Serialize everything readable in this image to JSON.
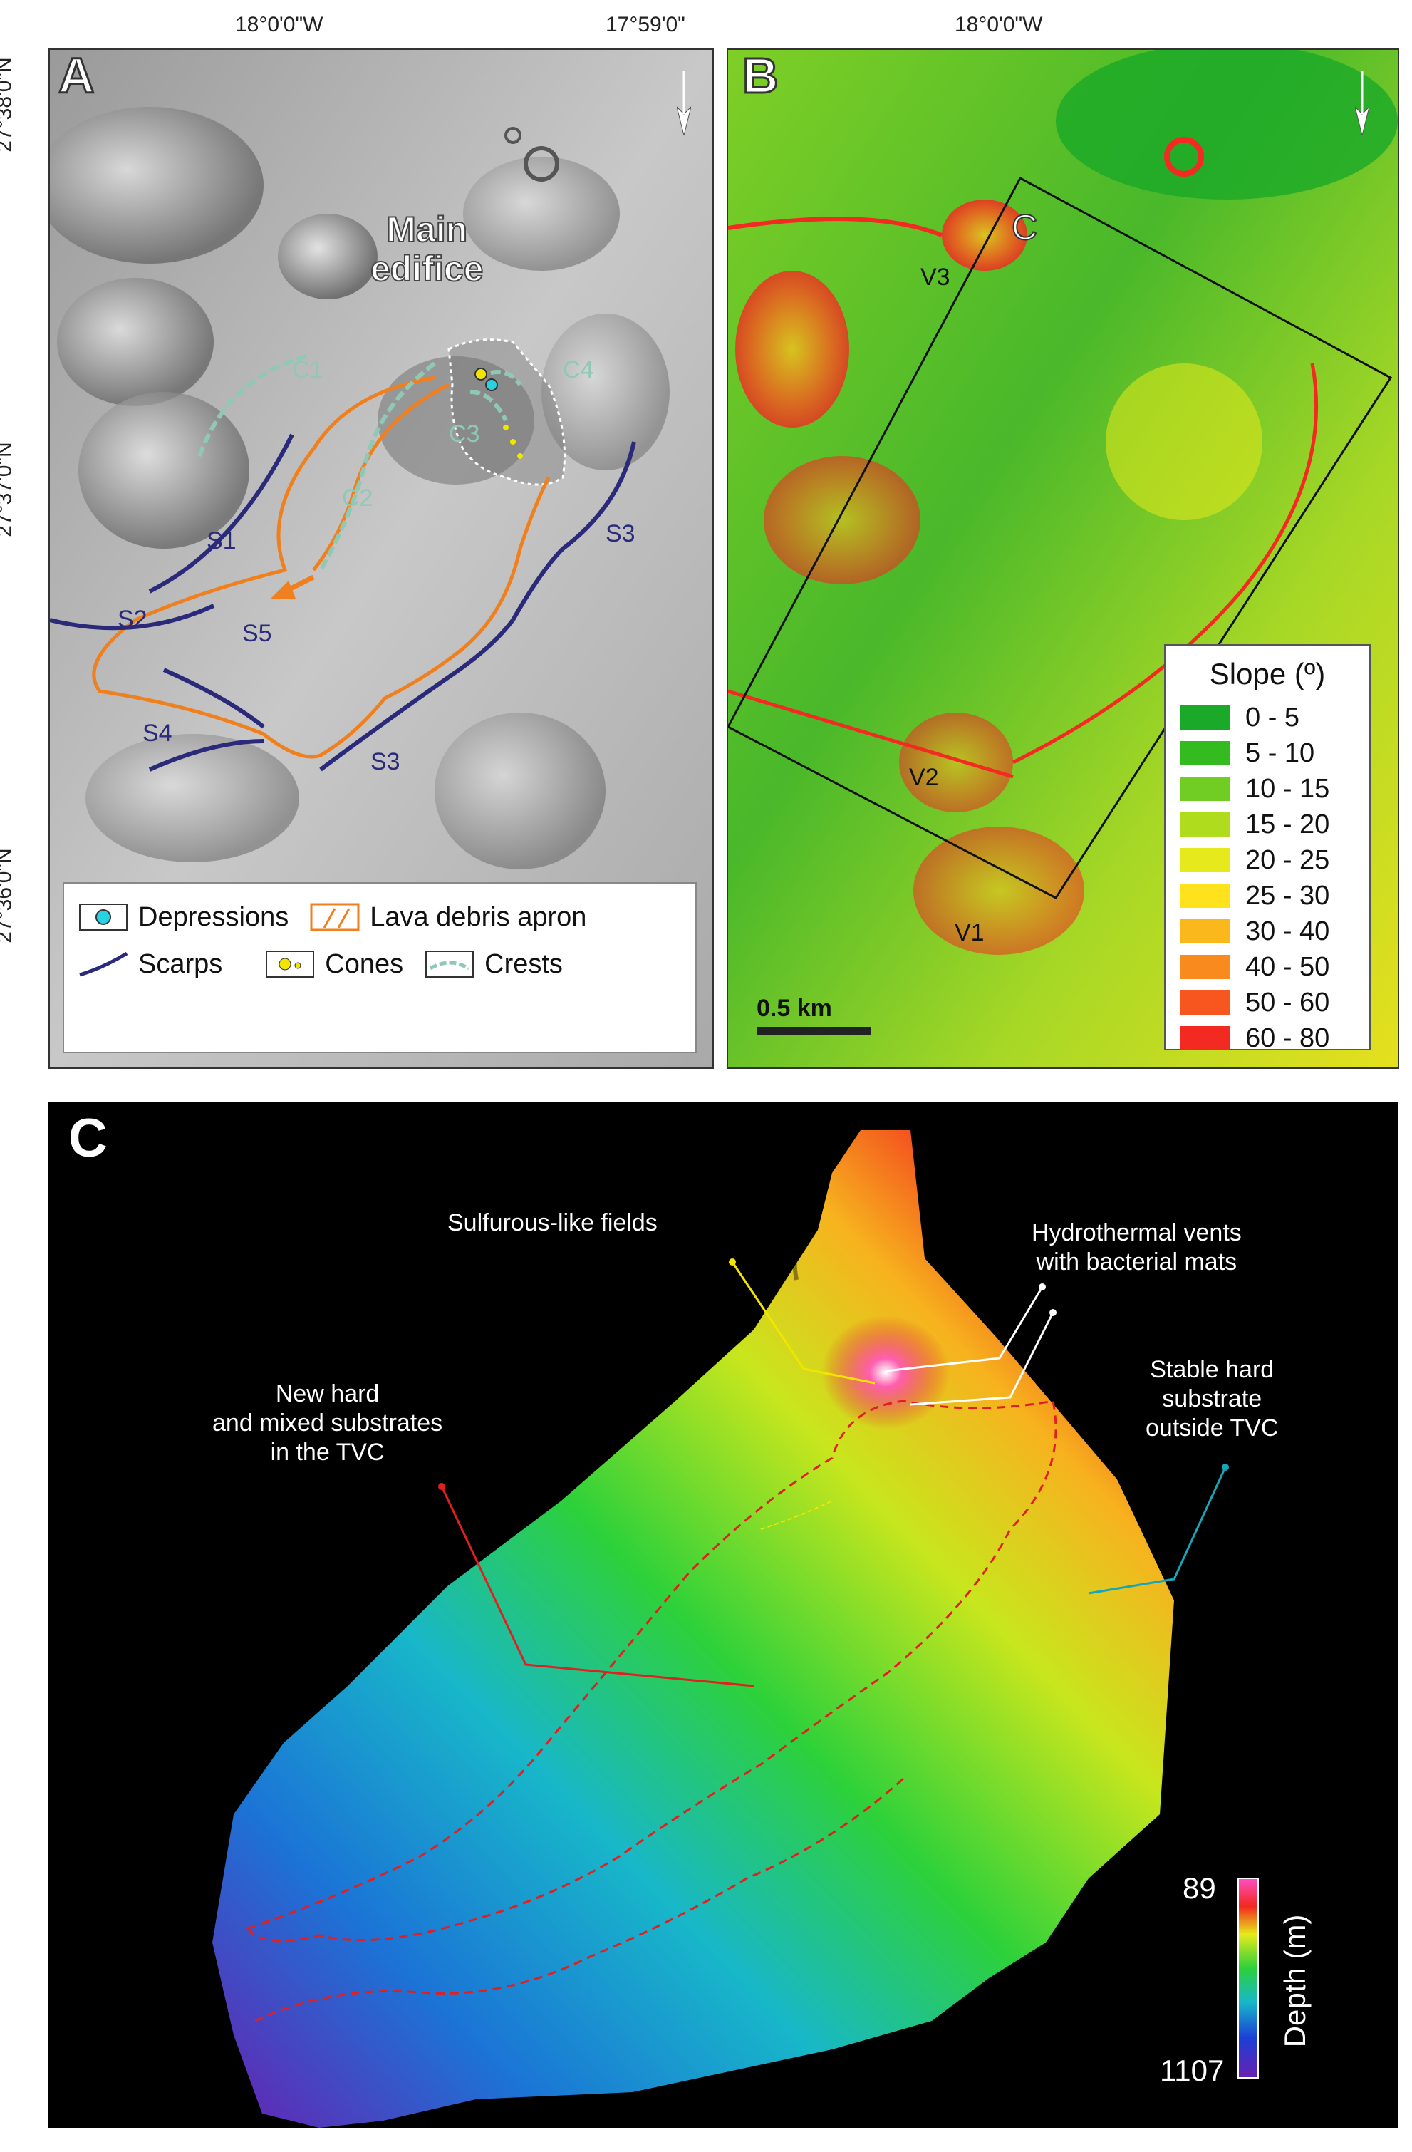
{
  "panel_a": {
    "letter": "A",
    "lon_labels": [
      "18°0'0\"W",
      "17°59'0\""
    ],
    "lat_labels": [
      "27°38'0\"N",
      "27°37'0\"N",
      "27°36'0\"N"
    ],
    "main_edifice_label": [
      "Main",
      "edifice"
    ],
    "crest_labels": [
      "C1",
      "C2",
      "C3",
      "C4"
    ],
    "scarp_labels": [
      "S1",
      "S2",
      "S3",
      "S3",
      "S4",
      "S5"
    ],
    "legend": {
      "depressions": "Depressions",
      "lava_apron": "Lava debris apron",
      "scarps": "Scarps",
      "cones": "Cones",
      "crests": "Crests"
    },
    "colors": {
      "crest": "#8fc9b5",
      "scarp": "#2b2a7a",
      "apron": "#f07f1e",
      "depression": "#27d3e0",
      "cone": "#f2e600"
    }
  },
  "panel_b": {
    "letter": "B",
    "lon_label": "18°0'0\"W",
    "box_label": "C",
    "vent_labels": [
      "V3",
      "V2",
      "V1"
    ],
    "scale_label": "0.5 km",
    "legend_title": "Slope (º)",
    "slope_classes": [
      {
        "label": "0 - 5",
        "color": "#1aa928"
      },
      {
        "label": "5 - 10",
        "color": "#34bb1f"
      },
      {
        "label": "10 - 15",
        "color": "#71cc24"
      },
      {
        "label": "15 - 20",
        "color": "#b0dc1e"
      },
      {
        "label": "20 - 25",
        "color": "#e6ea1c"
      },
      {
        "label": "25 - 30",
        "color": "#fde21c"
      },
      {
        "label": "30 - 40",
        "color": "#fbb81d"
      },
      {
        "label": "40 - 50",
        "color": "#f98a1e"
      },
      {
        "label": "50 - 60",
        "color": "#f7561f"
      },
      {
        "label": "60 - 80",
        "color": "#f22a22"
      }
    ]
  },
  "panel_c": {
    "letter": "C",
    "annotations": {
      "sulfurous": "Sulfurous-like fields",
      "vents": [
        "Hydrothermal vents",
        "with bacterial mats"
      ],
      "new_substrates": [
        "New hard",
        "and mixed substrates",
        "in the TVC"
      ],
      "stable": [
        "Stable hard",
        "substrate",
        "outside TVC"
      ]
    },
    "depth_bar": {
      "top": "89",
      "bottom": "1107",
      "label": "Depth (m)"
    }
  }
}
